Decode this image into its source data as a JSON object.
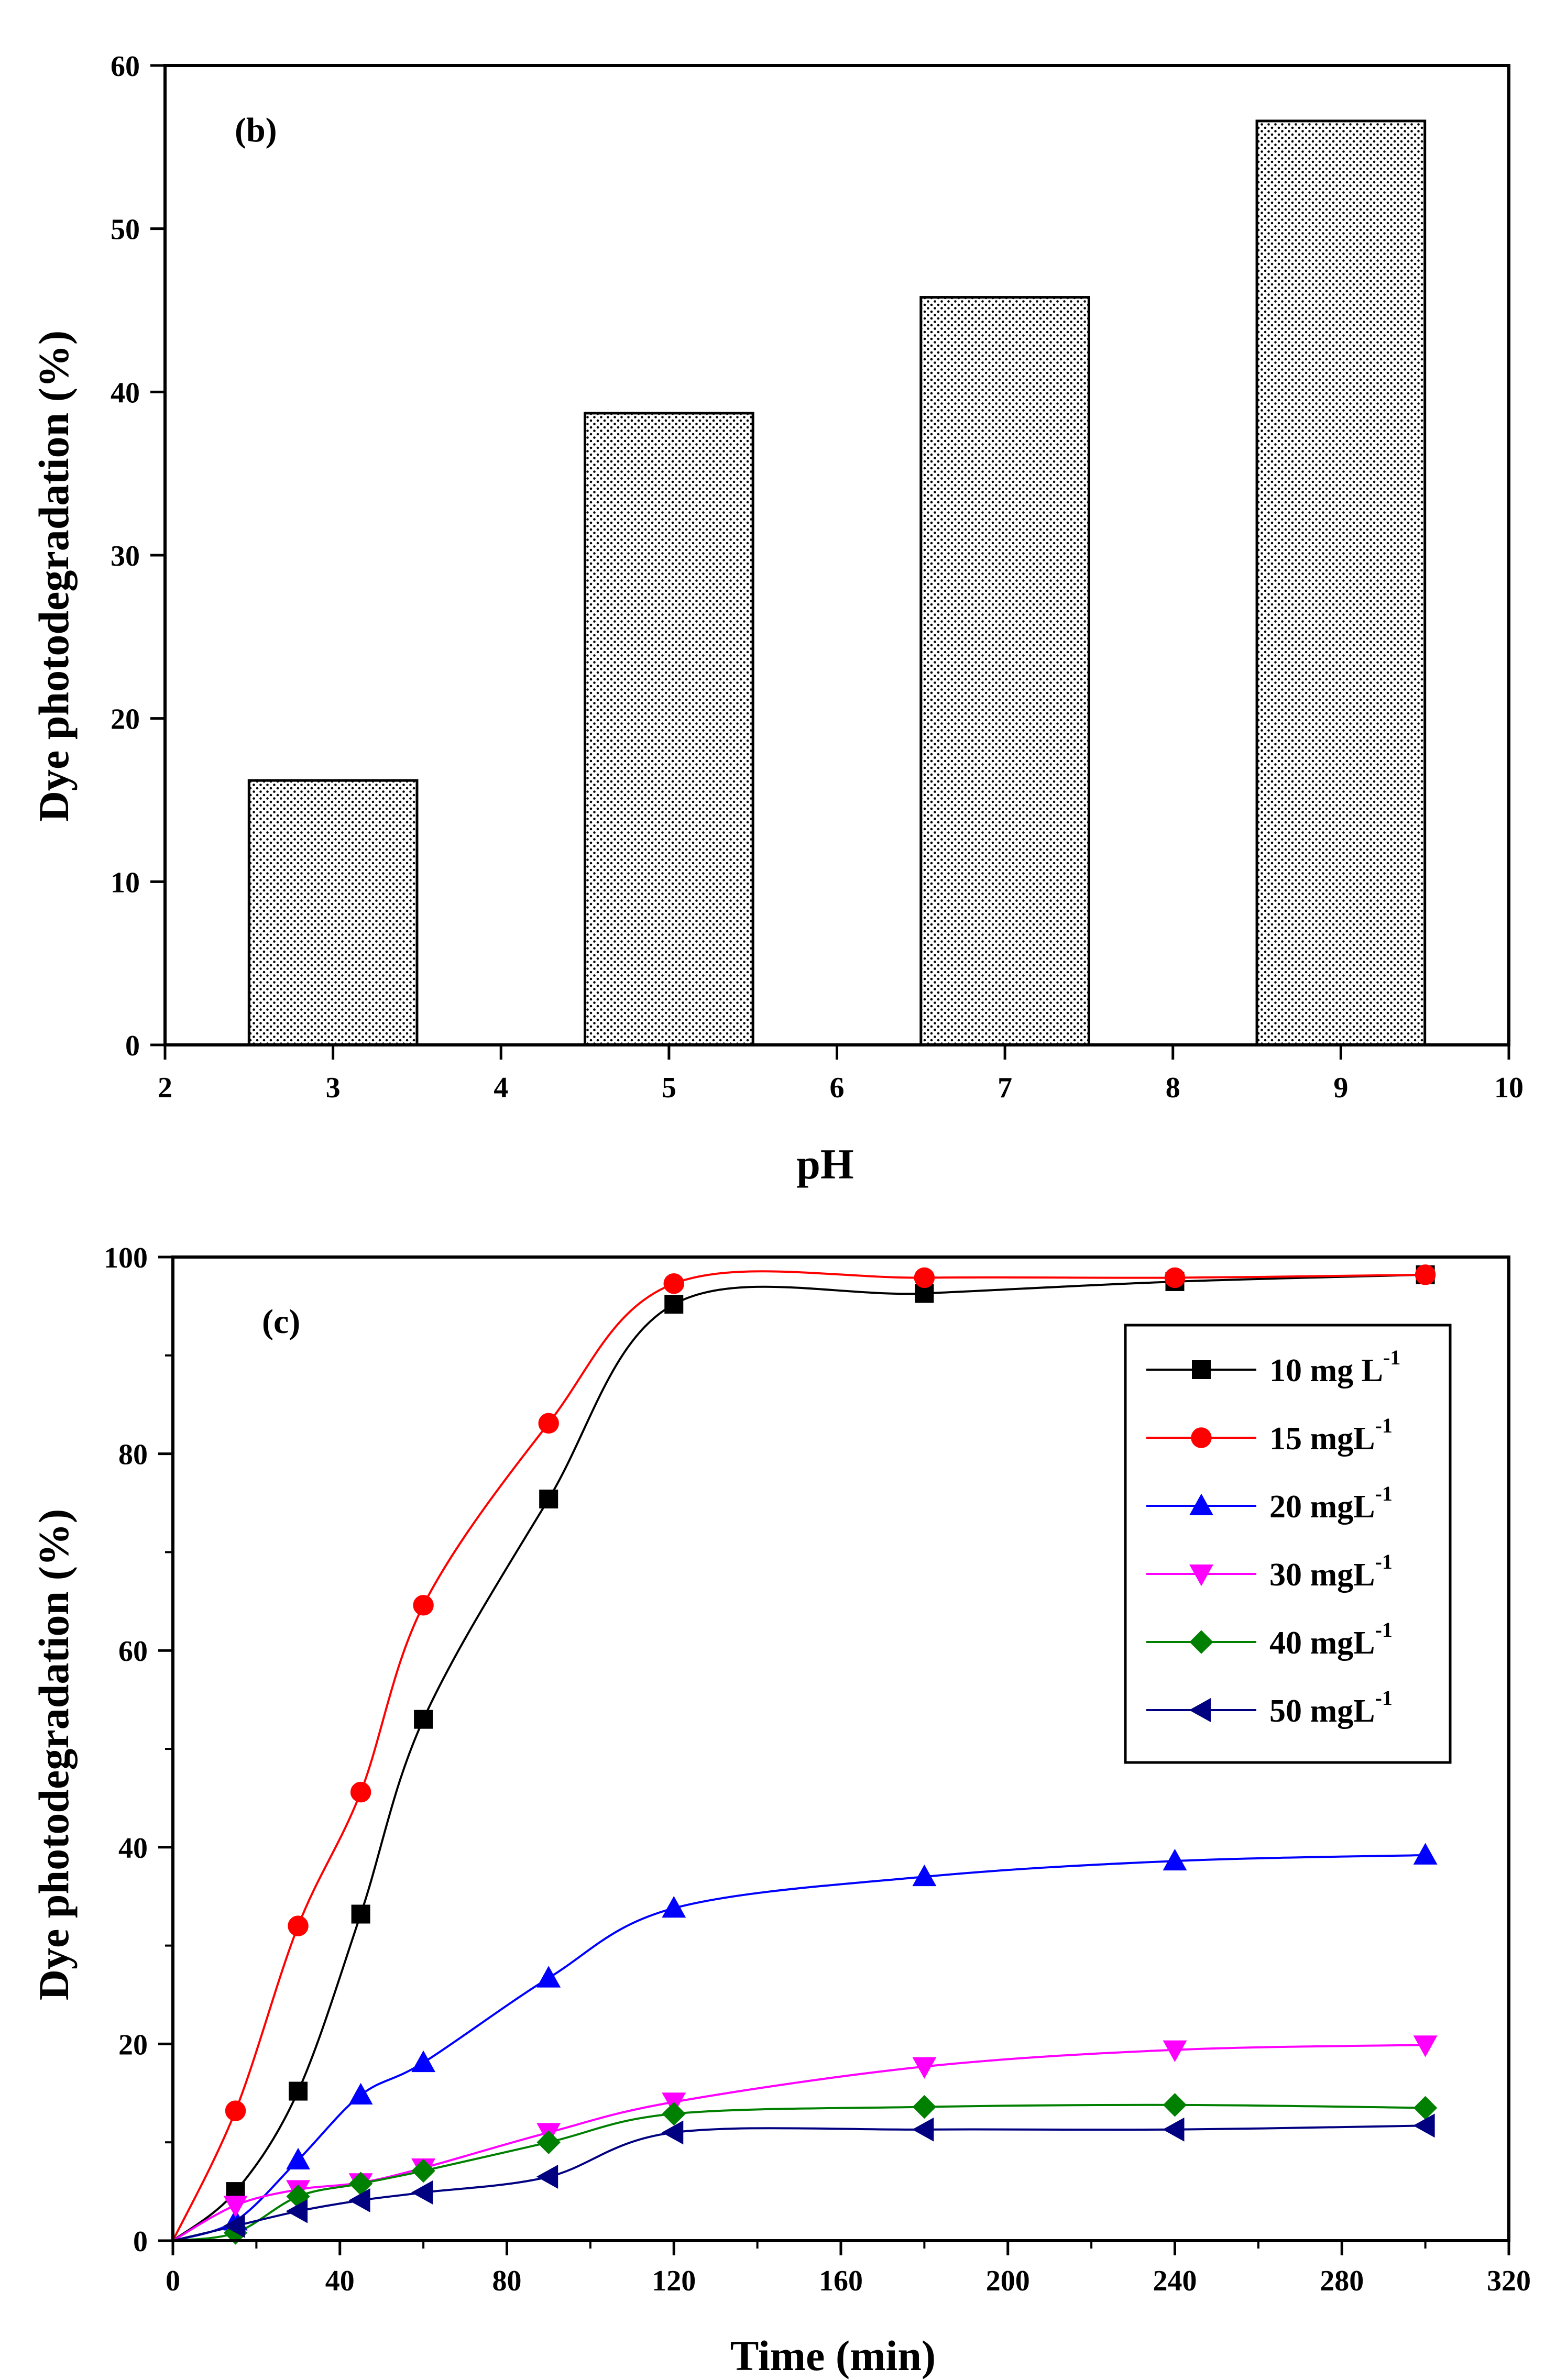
{
  "chart_data": [
    {
      "type": "bar",
      "panel_label": "(b)",
      "xlabel": "pH",
      "ylabel": "Dye photodegradation (%)",
      "xlim": [
        2,
        10
      ],
      "ylim": [
        0,
        60
      ],
      "xticks": [
        "2",
        "3",
        "4",
        "5",
        "6",
        "7",
        "8",
        "9",
        "10"
      ],
      "yticks": [
        "0",
        "10",
        "20",
        "30",
        "40",
        "50",
        "60"
      ],
      "bar_width": 1,
      "bar_fill": "dotted-pattern",
      "bars": [
        {
          "pH": 3,
          "value": 16.2
        },
        {
          "pH": 5,
          "value": 38.7
        },
        {
          "pH": 7,
          "value": 45.8
        },
        {
          "pH": 9,
          "value": 56.6
        }
      ]
    },
    {
      "type": "line",
      "panel_label": "(c)",
      "xlabel": "Time (min)",
      "ylabel": "Dye photodegradation (%)",
      "xlim": [
        0,
        320
      ],
      "ylim": [
        0,
        100
      ],
      "xticks": [
        "0",
        "40",
        "80",
        "120",
        "160",
        "200",
        "240",
        "280",
        "320"
      ],
      "yticks": [
        "0",
        "20",
        "40",
        "60",
        "80",
        "100"
      ],
      "legend_position": "top-right",
      "series": [
        {
          "name": "10 mg L",
          "sup": "-1",
          "color": "#000000",
          "marker": "square",
          "x": [
            0,
            15,
            30,
            45,
            60,
            90,
            120,
            180,
            240,
            300
          ],
          "y": [
            0,
            5,
            15.2,
            33.2,
            53,
            75.4,
            95.2,
            96.3,
            97.5,
            98.2
          ]
        },
        {
          "name": "15 mgL",
          "sup": "-1",
          "color": "#ff0000",
          "marker": "circle",
          "x": [
            0,
            15,
            30,
            45,
            60,
            90,
            120,
            180,
            240,
            300
          ],
          "y": [
            0,
            13.2,
            32,
            45.6,
            64.6,
            83.1,
            97.3,
            97.9,
            97.9,
            98.2
          ]
        },
        {
          "name": "20 mgL",
          "sup": "-1",
          "color": "#0000ff",
          "marker": "triangle-up",
          "x": [
            0,
            15,
            30,
            45,
            60,
            90,
            120,
            180,
            240,
            300
          ],
          "y": [
            0,
            2,
            8.2,
            14.8,
            18.1,
            26.7,
            33.8,
            37,
            38.6,
            39.2
          ]
        },
        {
          "name": "30 mgL",
          "sup": "-1",
          "color": "#ff00ff",
          "marker": "triangle-down",
          "x": [
            0,
            15,
            30,
            45,
            60,
            90,
            120,
            180,
            240,
            300
          ],
          "y": [
            0,
            3.6,
            5.2,
            5.9,
            7.4,
            11,
            14.1,
            17.7,
            19.4,
            19.9
          ]
        },
        {
          "name": "40 mgL",
          "sup": "-1",
          "color": "#008000",
          "marker": "diamond",
          "x": [
            0,
            15,
            30,
            45,
            60,
            90,
            120,
            180,
            240,
            300
          ],
          "y": [
            0,
            0.8,
            4.5,
            5.8,
            7.1,
            10,
            12.9,
            13.6,
            13.8,
            13.5
          ]
        },
        {
          "name": "50 mgL",
          "sup": "-1",
          "color": "#000080",
          "marker": "triangle-left",
          "x": [
            0,
            15,
            30,
            45,
            60,
            90,
            120,
            180,
            240,
            300
          ],
          "y": [
            0,
            1.5,
            3,
            4.1,
            4.9,
            6.5,
            11,
            11.3,
            11.3,
            11.7
          ]
        }
      ]
    }
  ]
}
